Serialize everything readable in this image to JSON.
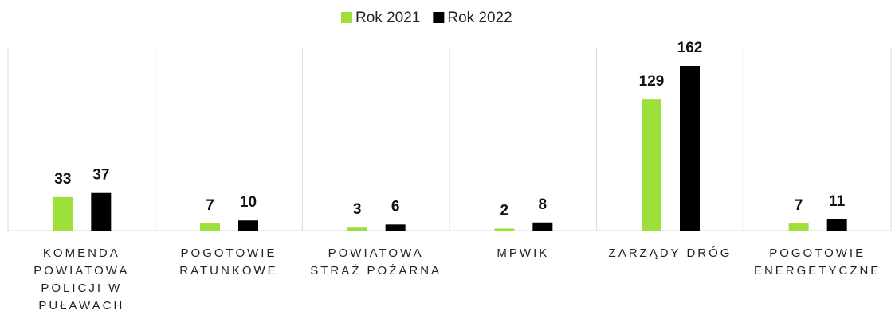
{
  "chart_data": {
    "type": "bar",
    "categories": [
      "KOMENDA POWIATOWA POLICJI W PUŁAWACH",
      "POGOTOWIE RATUNKOWE",
      "POWIATOWA STRAŻ POŻARNA",
      "MPWIK",
      "ZARZĄDY DRÓG",
      "POGOTOWIE ENERGETYCZNE"
    ],
    "series": [
      {
        "name": "Rok 2021",
        "color": "#9de03c",
        "values": [
          33,
          7,
          3,
          2,
          129,
          7
        ]
      },
      {
        "name": "Rok 2022",
        "color": "#000000",
        "values": [
          37,
          10,
          6,
          8,
          162,
          11
        ]
      }
    ],
    "ylim": [
      0,
      180
    ],
    "legend": "top"
  }
}
